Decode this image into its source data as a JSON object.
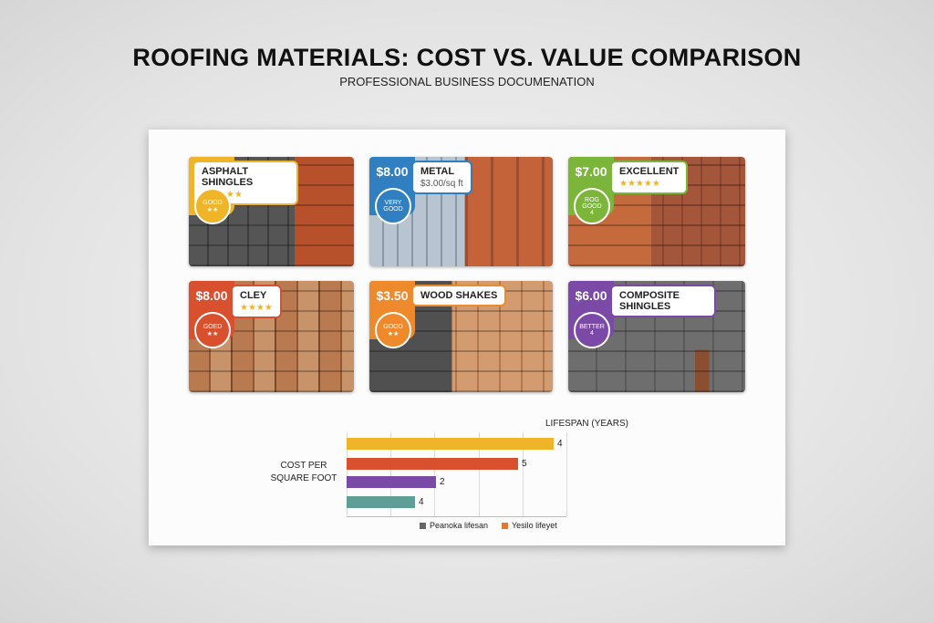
{
  "header": {
    "title": "ROOFING MATERIALS: COST VS. VALUE COMPARISON",
    "subtitle": "PROFESSIONAL BUSINESS DOCUMENATION"
  },
  "cards": [
    {
      "price": null,
      "name": "ASPHALT SHINGLES",
      "detail": "★★★★★",
      "badge": "GOOD",
      "badge_note": "★★"
    },
    {
      "price": "$8.00",
      "name": "METAL",
      "detail": "$3.00/sq ft",
      "badge": "VERY GOOD",
      "badge_note": null
    },
    {
      "price": "$7.00",
      "name": "EXCELLENT",
      "detail": "★★★★★",
      "badge": "ROG GOOD",
      "badge_note": "4"
    },
    {
      "price": "$8.00",
      "name": "CLEY",
      "detail": "★★★★",
      "badge": "GOED",
      "badge_note": "★★"
    },
    {
      "price": "$3.50",
      "name": "WOOD SHAKES",
      "detail": null,
      "badge": "GOOD",
      "badge_note": "★★"
    },
    {
      "price": "$6.00",
      "name": "COMPOSITE SHINGLES",
      "detail": null,
      "badge": "BETTER",
      "badge_note": "4"
    }
  ],
  "chart": {
    "title": "LIFESPAN (YEARS)",
    "axis_label": "COST PER SQUARE FOOT",
    "bar_labels": [
      "4",
      "5",
      "2",
      "4"
    ],
    "legend": [
      "Peanoka lifesan",
      "Yesilo lifeyet"
    ]
  }
}
